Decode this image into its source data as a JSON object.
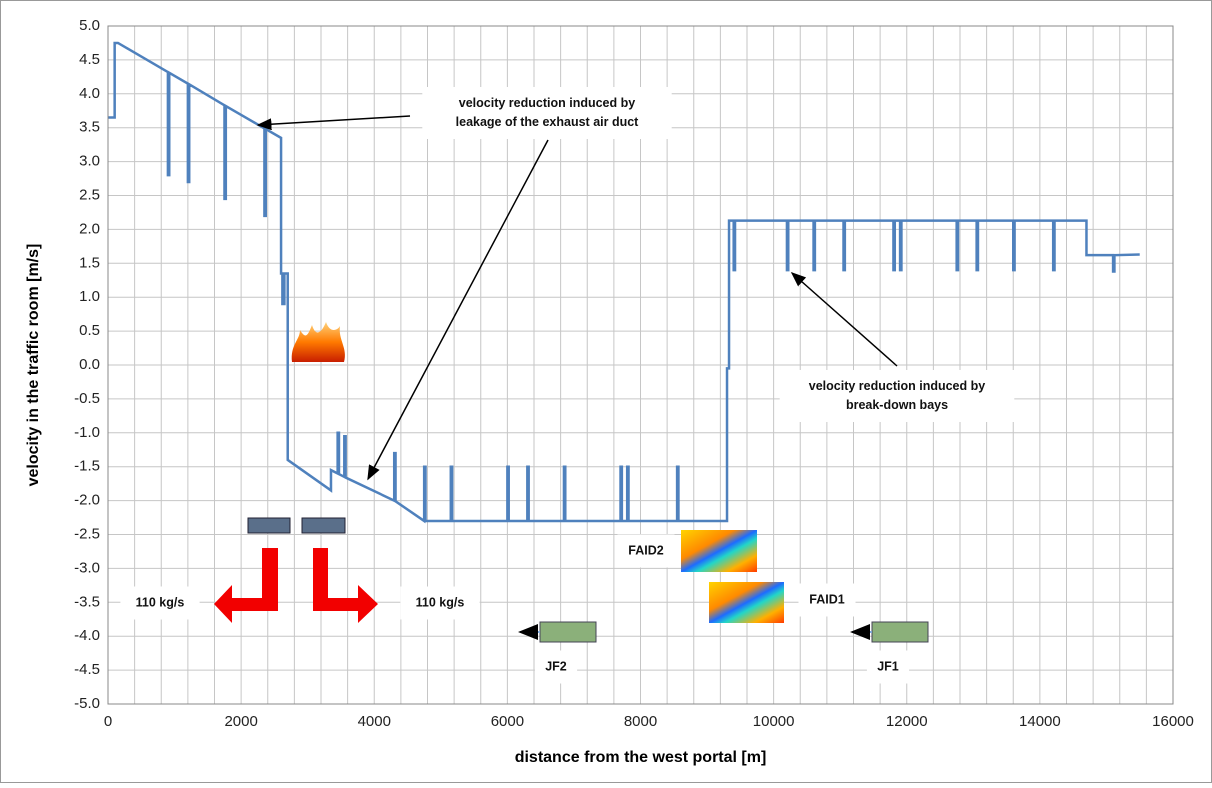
{
  "chart_data": {
    "type": "line",
    "xlabel": "distance from the west portal [m]",
    "ylabel": "velocity in the traffic room [m/s]",
    "xlim": [
      0,
      16000
    ],
    "ylim": [
      -5,
      5
    ],
    "xticks": [
      0,
      2000,
      4000,
      6000,
      8000,
      10000,
      12000,
      14000,
      16000
    ],
    "x_grid_step": 400,
    "yticks": [
      {
        "value": 5,
        "label": "5.0"
      },
      4.5,
      {
        "value": 4,
        "label": "4.0"
      },
      3.5,
      {
        "value": 3,
        "label": "3.0"
      },
      2.5,
      {
        "value": 2,
        "label": "2.0"
      },
      1.5,
      {
        "value": 1,
        "label": "1.0"
      },
      0.5,
      {
        "value": 0,
        "label": "0.0"
      },
      -0.5,
      {
        "value": -1,
        "label": "-1.0"
      },
      -1.5,
      {
        "value": -2,
        "label": "-2.0"
      },
      -2.5,
      {
        "value": -3,
        "label": "-3.0"
      },
      -3.5,
      {
        "value": -4,
        "label": "-4.0"
      },
      -4.5,
      {
        "value": -5,
        "label": "-5.0"
      }
    ],
    "grid": true,
    "x": [
      0,
      100,
      100,
      150,
      900,
      900,
      920,
      920,
      1200,
      1200,
      1220,
      1220,
      1750,
      1750,
      1770,
      1770,
      2350,
      2350,
      2370,
      2370,
      2600,
      2600,
      2620,
      2620,
      2650,
      2650,
      2700,
      2700,
      3350,
      3350,
      3450,
      3450,
      3470,
      3470,
      3550,
      3550,
      3570,
      3570,
      4300,
      4300,
      4320,
      4320,
      4750,
      4750,
      4770,
      4770,
      5150,
      5150,
      5170,
      5170,
      6000,
      6000,
      6020,
      6020,
      6300,
      6300,
      6320,
      6320,
      6850,
      6850,
      6870,
      6870,
      7700,
      7700,
      7720,
      7720,
      7800,
      7800,
      7820,
      7820,
      8550,
      8550,
      8570,
      8570,
      9300,
      9300,
      9330,
      9330,
      9400,
      9400,
      9420,
      9420,
      10200,
      10200,
      10220,
      10220,
      10600,
      10600,
      10620,
      10620,
      11050,
      11050,
      11070,
      11070,
      11800,
      11800,
      11820,
      11820,
      11900,
      11900,
      11920,
      11920,
      12750,
      12750,
      12770,
      12770,
      13050,
      13050,
      13070,
      13070,
      13600,
      13600,
      13620,
      13620,
      14200,
      14200,
      14220,
      14220,
      14700,
      14700,
      15100,
      15100,
      15120,
      15120,
      15500
    ],
    "series": [
      {
        "color": "#4f81bd",
        "values": [
          3.65,
          3.65,
          4.75,
          4.75,
          4.32,
          2.8,
          2.8,
          4.31,
          4.15,
          2.7,
          2.7,
          4.14,
          3.83,
          2.45,
          2.45,
          3.82,
          3.49,
          2.2,
          2.2,
          3.48,
          3.35,
          1.35,
          1.35,
          0.9,
          0.9,
          1.35,
          1.35,
          -1.4,
          -1.85,
          -1.55,
          -1.6,
          -1.0,
          -1.0,
          -1.61,
          -1.65,
          -1.05,
          -1.05,
          -1.66,
          -2.0,
          -1.3,
          -1.3,
          -2.01,
          -2.3,
          -1.5,
          -1.5,
          -2.3,
          -2.3,
          -1.5,
          -1.5,
          -2.3,
          -2.3,
          -1.5,
          -1.5,
          -2.3,
          -2.3,
          -1.5,
          -1.5,
          -2.3,
          -2.3,
          -1.5,
          -1.5,
          -2.3,
          -2.3,
          -1.5,
          -1.5,
          -2.3,
          -2.3,
          -1.5,
          -1.5,
          -2.3,
          -2.3,
          -1.5,
          -1.5,
          -2.3,
          -2.3,
          -0.05,
          -0.05,
          2.13,
          2.13,
          1.4,
          1.4,
          2.13,
          2.13,
          1.4,
          1.4,
          2.13,
          2.13,
          1.4,
          1.4,
          2.13,
          2.13,
          1.4,
          1.4,
          2.13,
          2.13,
          1.4,
          1.4,
          2.13,
          2.13,
          1.4,
          1.4,
          2.13,
          2.13,
          1.4,
          1.4,
          2.13,
          2.13,
          1.4,
          1.4,
          2.13,
          2.13,
          1.4,
          1.4,
          2.13,
          2.13,
          1.4,
          1.4,
          2.13,
          2.13,
          1.62,
          1.62,
          1.38,
          1.38,
          1.62,
          1.63
        ]
      }
    ],
    "annotations": [
      {
        "lines": [
          "velocity reduction induced by",
          "leakage of the exhaust air duct"
        ]
      },
      {
        "lines": [
          "velocity reduction induced by",
          "break-down bays"
        ]
      },
      {
        "lines": [
          "110 kg/s"
        ]
      },
      {
        "lines": [
          "110 kg/s"
        ]
      },
      {
        "lines": [
          "FAID2"
        ]
      },
      {
        "lines": [
          "FAID1"
        ]
      },
      {
        "lines": [
          "JF2"
        ]
      },
      {
        "lines": [
          "JF1"
        ]
      }
    ]
  }
}
